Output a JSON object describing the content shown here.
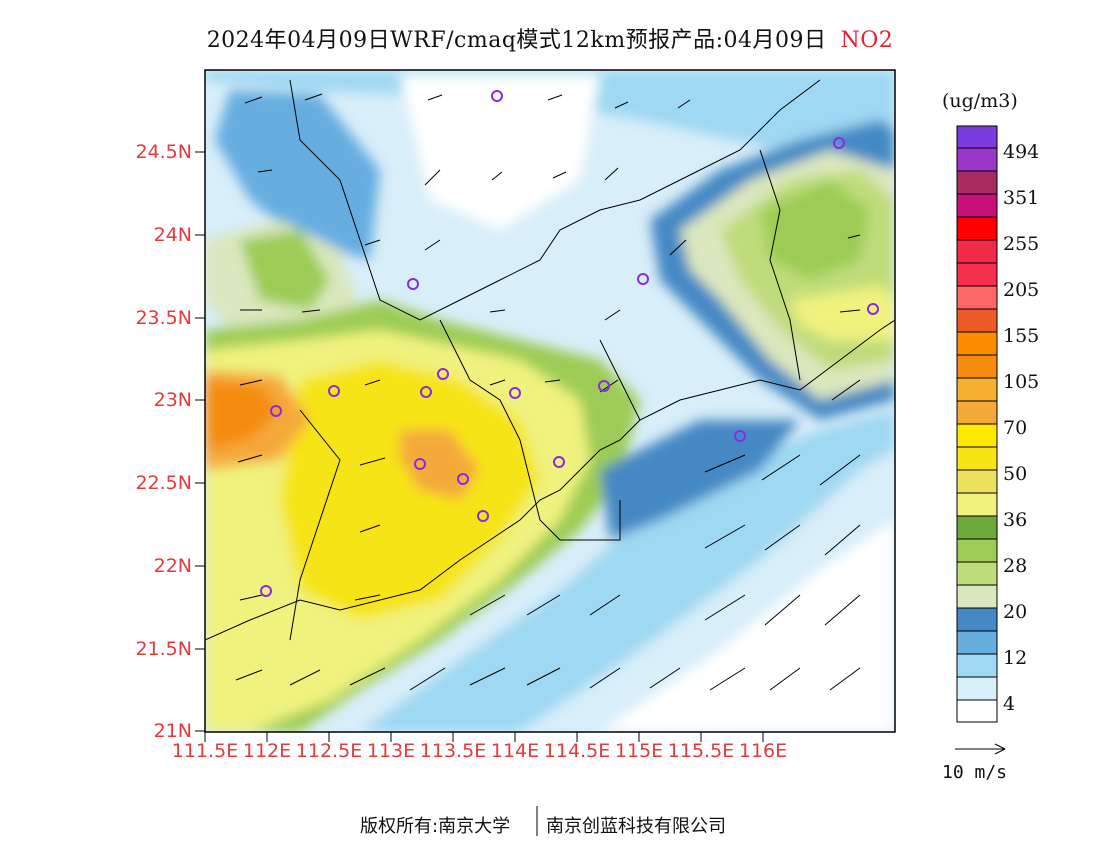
{
  "header": {
    "title": "2024年04月09日WRF/cmaq模式12km预报产品:04月09日",
    "pollutant": "NO2"
  },
  "axes": {
    "lat_ticks": [
      "24.5N",
      "24N",
      "23.5N",
      "23N",
      "22.5N",
      "22N",
      "21.5N",
      "21N"
    ],
    "lon_ticks": [
      "111.5E",
      "112E",
      "112.5E",
      "113E",
      "113.5E",
      "114E",
      "114.5E",
      "115E",
      "115.5E",
      "116E"
    ]
  },
  "colorbar": {
    "unit": "(ug/m3)",
    "labels": [
      "494",
      "351",
      "255",
      "205",
      "155",
      "105",
      "70",
      "50",
      "36",
      "28",
      "20",
      "12",
      "4"
    ],
    "colors": [
      "#ffffff",
      "#d8eef9",
      "#9fd8f2",
      "#66ade0",
      "#4589c4",
      "#dbe7be",
      "#bfdc7a",
      "#9ccc55",
      "#6eaa3a",
      "#f0f27e",
      "#ece25f",
      "#f6e414",
      "#f5a93a",
      "#f58c10",
      "#ec5a2a",
      "#fe6666",
      "#f62f4c",
      "#fe0000",
      "#c8107b",
      "#a82c60",
      "#9b37c8",
      "#7a3be0"
    ]
  },
  "wind": {
    "reference_label": "10 m/s"
  },
  "footer": {
    "copyright": "版权所有:南京大学",
    "company": "南京创蓝科技有限公司"
  },
  "legend_colors": {
    "accent": "#e43a3a",
    "station_marker": "#8a2be2"
  }
}
